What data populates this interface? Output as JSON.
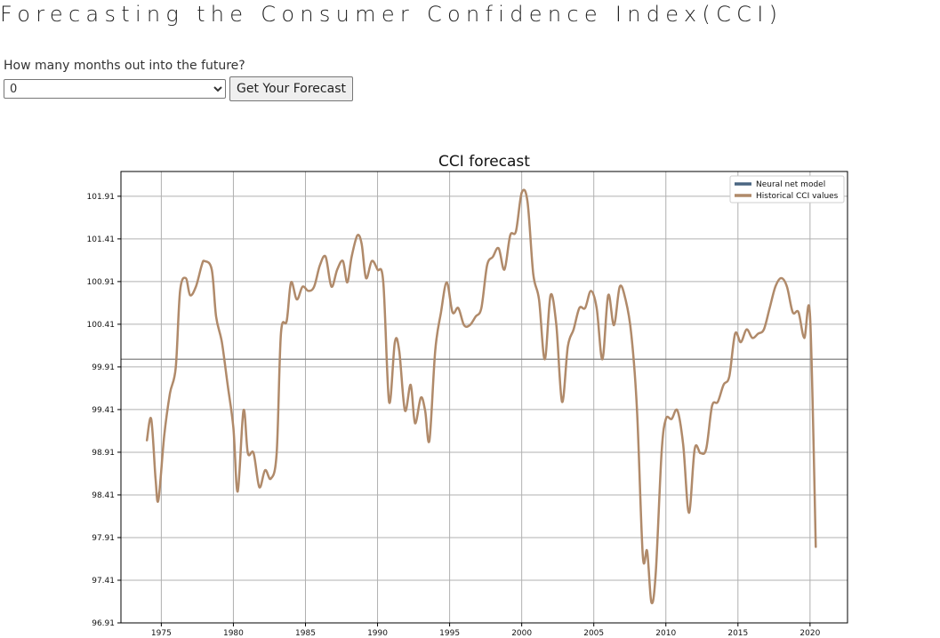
{
  "header": {
    "title": "Forecasting the Consumer Confidence Index(CCI)"
  },
  "form": {
    "question": "How many months out into the future?",
    "selected_months": "0",
    "options": [
      "0"
    ],
    "submit_label": "Get Your Forecast"
  },
  "colors": {
    "historical": "#b08a6a",
    "model": "#4a6682",
    "baseline": "#808080"
  },
  "chart_data": {
    "type": "line",
    "title": "CCI forecast",
    "xlabel": "",
    "ylabel": "",
    "xlim": [
      1972.2,
      2022.6
    ],
    "ylim": [
      96.91,
      102.2
    ],
    "x_ticks": [
      1975,
      1980,
      1985,
      1990,
      1995,
      2000,
      2005,
      2010,
      2015,
      2020
    ],
    "x_tick_labels": [
      "1975",
      "1980",
      "1985",
      "1990",
      "1995",
      "2000",
      "2005",
      "2010",
      "2015",
      "2020"
    ],
    "y_ticks": [
      96.91,
      97.41,
      97.91,
      98.41,
      98.91,
      99.41,
      99.91,
      100.41,
      100.91,
      101.41,
      101.91
    ],
    "y_tick_labels": [
      "96.91",
      "97.41",
      "97.91",
      "98.41",
      "98.91",
      "99.41",
      "99.91",
      "100.41",
      "100.91",
      "101.41",
      "101.91"
    ],
    "grid": true,
    "legend_position": "top-right",
    "reference_line": 100.0,
    "series": [
      {
        "name": "Neural net model",
        "points": []
      },
      {
        "name": "Historical CCI values",
        "points": [
          [
            1974.0,
            99.05
          ],
          [
            1974.3,
            99.3
          ],
          [
            1974.6,
            98.6
          ],
          [
            1974.8,
            98.35
          ],
          [
            1975.2,
            99.1
          ],
          [
            1975.6,
            99.6
          ],
          [
            1976.0,
            99.9
          ],
          [
            1976.3,
            100.8
          ],
          [
            1976.7,
            100.95
          ],
          [
            1977.0,
            100.75
          ],
          [
            1977.4,
            100.85
          ],
          [
            1977.8,
            101.1
          ],
          [
            1978.0,
            101.15
          ],
          [
            1978.5,
            101.05
          ],
          [
            1978.8,
            100.5
          ],
          [
            1979.2,
            100.2
          ],
          [
            1979.6,
            99.7
          ],
          [
            1980.0,
            99.2
          ],
          [
            1980.3,
            98.45
          ],
          [
            1980.7,
            99.4
          ],
          [
            1981.0,
            98.9
          ],
          [
            1981.4,
            98.9
          ],
          [
            1981.8,
            98.5
          ],
          [
            1982.2,
            98.7
          ],
          [
            1982.6,
            98.6
          ],
          [
            1983.0,
            98.9
          ],
          [
            1983.3,
            100.3
          ],
          [
            1983.7,
            100.45
          ],
          [
            1984.0,
            100.9
          ],
          [
            1984.4,
            100.7
          ],
          [
            1984.8,
            100.85
          ],
          [
            1985.2,
            100.8
          ],
          [
            1985.6,
            100.85
          ],
          [
            1986.0,
            101.1
          ],
          [
            1986.4,
            101.2
          ],
          [
            1986.8,
            100.85
          ],
          [
            1987.2,
            101.05
          ],
          [
            1987.6,
            101.15
          ],
          [
            1987.9,
            100.9
          ],
          [
            1988.2,
            101.2
          ],
          [
            1988.6,
            101.45
          ],
          [
            1988.9,
            101.35
          ],
          [
            1989.2,
            100.95
          ],
          [
            1989.6,
            101.15
          ],
          [
            1990.0,
            101.05
          ],
          [
            1990.4,
            100.9
          ],
          [
            1990.8,
            99.5
          ],
          [
            1991.2,
            100.2
          ],
          [
            1991.5,
            100.1
          ],
          [
            1991.9,
            99.4
          ],
          [
            1992.3,
            99.7
          ],
          [
            1992.6,
            99.25
          ],
          [
            1993.0,
            99.55
          ],
          [
            1993.3,
            99.4
          ],
          [
            1993.6,
            99.05
          ],
          [
            1994.0,
            100.1
          ],
          [
            1994.4,
            100.55
          ],
          [
            1994.8,
            100.9
          ],
          [
            1995.2,
            100.55
          ],
          [
            1995.6,
            100.6
          ],
          [
            1996.0,
            100.4
          ],
          [
            1996.4,
            100.4
          ],
          [
            1996.8,
            100.5
          ],
          [
            1997.2,
            100.6
          ],
          [
            1997.6,
            101.1
          ],
          [
            1998.0,
            101.2
          ],
          [
            1998.4,
            101.3
          ],
          [
            1998.8,
            101.05
          ],
          [
            1999.2,
            101.45
          ],
          [
            1999.6,
            101.5
          ],
          [
            2000.0,
            101.95
          ],
          [
            2000.4,
            101.85
          ],
          [
            2000.8,
            101.0
          ],
          [
            2001.2,
            100.7
          ],
          [
            2001.6,
            100.0
          ],
          [
            2002.0,
            100.75
          ],
          [
            2002.4,
            100.4
          ],
          [
            2002.8,
            99.5
          ],
          [
            2003.2,
            100.15
          ],
          [
            2003.6,
            100.35
          ],
          [
            2004.0,
            100.6
          ],
          [
            2004.4,
            100.6
          ],
          [
            2004.8,
            100.8
          ],
          [
            2005.2,
            100.6
          ],
          [
            2005.6,
            100.0
          ],
          [
            2006.0,
            100.75
          ],
          [
            2006.4,
            100.4
          ],
          [
            2006.8,
            100.85
          ],
          [
            2007.2,
            100.7
          ],
          [
            2007.6,
            100.3
          ],
          [
            2008.0,
            99.4
          ],
          [
            2008.4,
            97.7
          ],
          [
            2008.7,
            97.75
          ],
          [
            2009.0,
            97.15
          ],
          [
            2009.3,
            97.5
          ],
          [
            2009.7,
            98.9
          ],
          [
            2010.0,
            99.3
          ],
          [
            2010.4,
            99.3
          ],
          [
            2010.8,
            99.4
          ],
          [
            2011.2,
            99.0
          ],
          [
            2011.6,
            98.2
          ],
          [
            2012.0,
            98.95
          ],
          [
            2012.4,
            98.9
          ],
          [
            2012.8,
            98.95
          ],
          [
            2013.2,
            99.45
          ],
          [
            2013.6,
            99.5
          ],
          [
            2014.0,
            99.7
          ],
          [
            2014.4,
            99.8
          ],
          [
            2014.8,
            100.3
          ],
          [
            2015.2,
            100.2
          ],
          [
            2015.6,
            100.35
          ],
          [
            2016.0,
            100.25
          ],
          [
            2016.4,
            100.3
          ],
          [
            2016.8,
            100.35
          ],
          [
            2017.2,
            100.6
          ],
          [
            2017.6,
            100.85
          ],
          [
            2018.0,
            100.95
          ],
          [
            2018.4,
            100.85
          ],
          [
            2018.8,
            100.55
          ],
          [
            2019.2,
            100.55
          ],
          [
            2019.6,
            100.25
          ],
          [
            2020.0,
            100.5
          ],
          [
            2020.4,
            97.8
          ]
        ]
      }
    ]
  }
}
